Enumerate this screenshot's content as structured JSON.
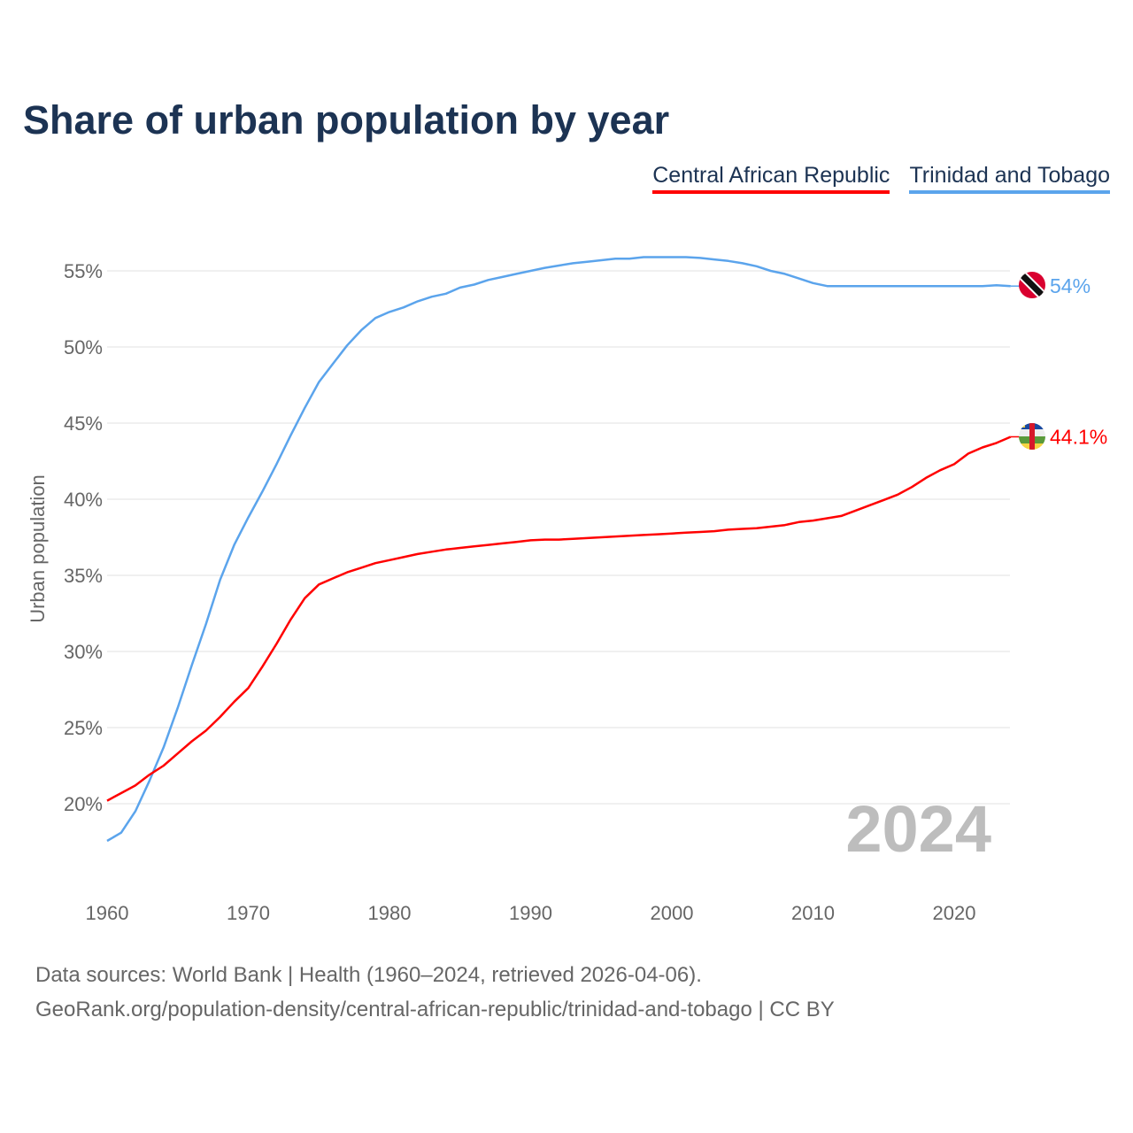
{
  "title": "Share of urban population by year",
  "legend": [
    {
      "label": "Central African Republic",
      "color": "#ff0000"
    },
    {
      "label": "Trinidad and Tobago",
      "color": "#5ba4ec"
    }
  ],
  "year_watermark": "2024",
  "sources": {
    "line1": "Data sources: World Bank | Health (1960–2024, retrieved 2026-04-06).",
    "line2": "GeoRank.org/population-density/central-african-republic/trinidad-and-tobago | CC BY"
  },
  "chart_data": {
    "type": "line",
    "title": "Share of urban population by year",
    "xlabel": "",
    "ylabel": "Urban population",
    "xlim": [
      1960,
      2024
    ],
    "ylim": [
      15,
      58
    ],
    "grid": true,
    "legend_position": "top-right",
    "x_ticks": [
      1960,
      1970,
      1980,
      1990,
      2000,
      2010,
      2020
    ],
    "y_ticks": [
      20,
      25,
      30,
      35,
      40,
      45,
      50,
      55
    ],
    "y_tick_labels": [
      "20%",
      "25%",
      "30%",
      "35%",
      "40%",
      "45%",
      "50%",
      "55%"
    ],
    "x_start": 1960,
    "series": [
      {
        "name": "Central African Republic",
        "color": "#ff0000",
        "end_label": "44.1%",
        "flag": "central-african-republic-flag",
        "values": [
          20.2,
          20.7,
          21.2,
          21.9,
          22.5,
          23.3,
          24.1,
          24.8,
          25.7,
          26.7,
          27.6,
          29.0,
          30.5,
          32.1,
          33.5,
          34.4,
          34.8,
          35.2,
          35.5,
          35.8,
          36.0,
          36.2,
          36.4,
          36.55,
          36.7,
          36.8,
          36.9,
          37.0,
          37.1,
          37.2,
          37.3,
          37.35,
          37.35,
          37.4,
          37.45,
          37.5,
          37.55,
          37.6,
          37.65,
          37.7,
          37.75,
          37.8,
          37.85,
          37.9,
          38.0,
          38.05,
          38.1,
          38.2,
          38.3,
          38.5,
          38.6,
          38.75,
          38.9,
          39.25,
          39.6,
          39.95,
          40.3,
          40.8,
          41.4,
          41.9,
          42.3,
          43.0,
          43.4,
          43.7,
          44.1
        ]
      },
      {
        "name": "Trinidad and Tobago",
        "color": "#5ba4ec",
        "end_label": "54%",
        "flag": "trinidad-and-tobago-flag",
        "values": [
          17.56,
          18.1,
          19.5,
          21.5,
          23.7,
          26.3,
          29.1,
          31.8,
          34.7,
          37.0,
          38.8,
          40.5,
          42.3,
          44.2,
          46.0,
          47.7,
          48.9,
          50.1,
          51.1,
          51.9,
          52.3,
          52.6,
          53.0,
          53.3,
          53.5,
          53.9,
          54.1,
          54.4,
          54.6,
          54.8,
          55.0,
          55.2,
          55.35,
          55.5,
          55.6,
          55.7,
          55.8,
          55.8,
          55.9,
          55.9,
          55.9,
          55.9,
          55.85,
          55.75,
          55.65,
          55.5,
          55.3,
          55.0,
          54.8,
          54.5,
          54.2,
          54.0,
          54.0,
          54.0,
          54.0,
          54.0,
          54.0,
          54.0,
          54.0,
          54.0,
          54.0,
          54.0,
          54.0,
          54.05,
          54.0
        ]
      }
    ]
  }
}
